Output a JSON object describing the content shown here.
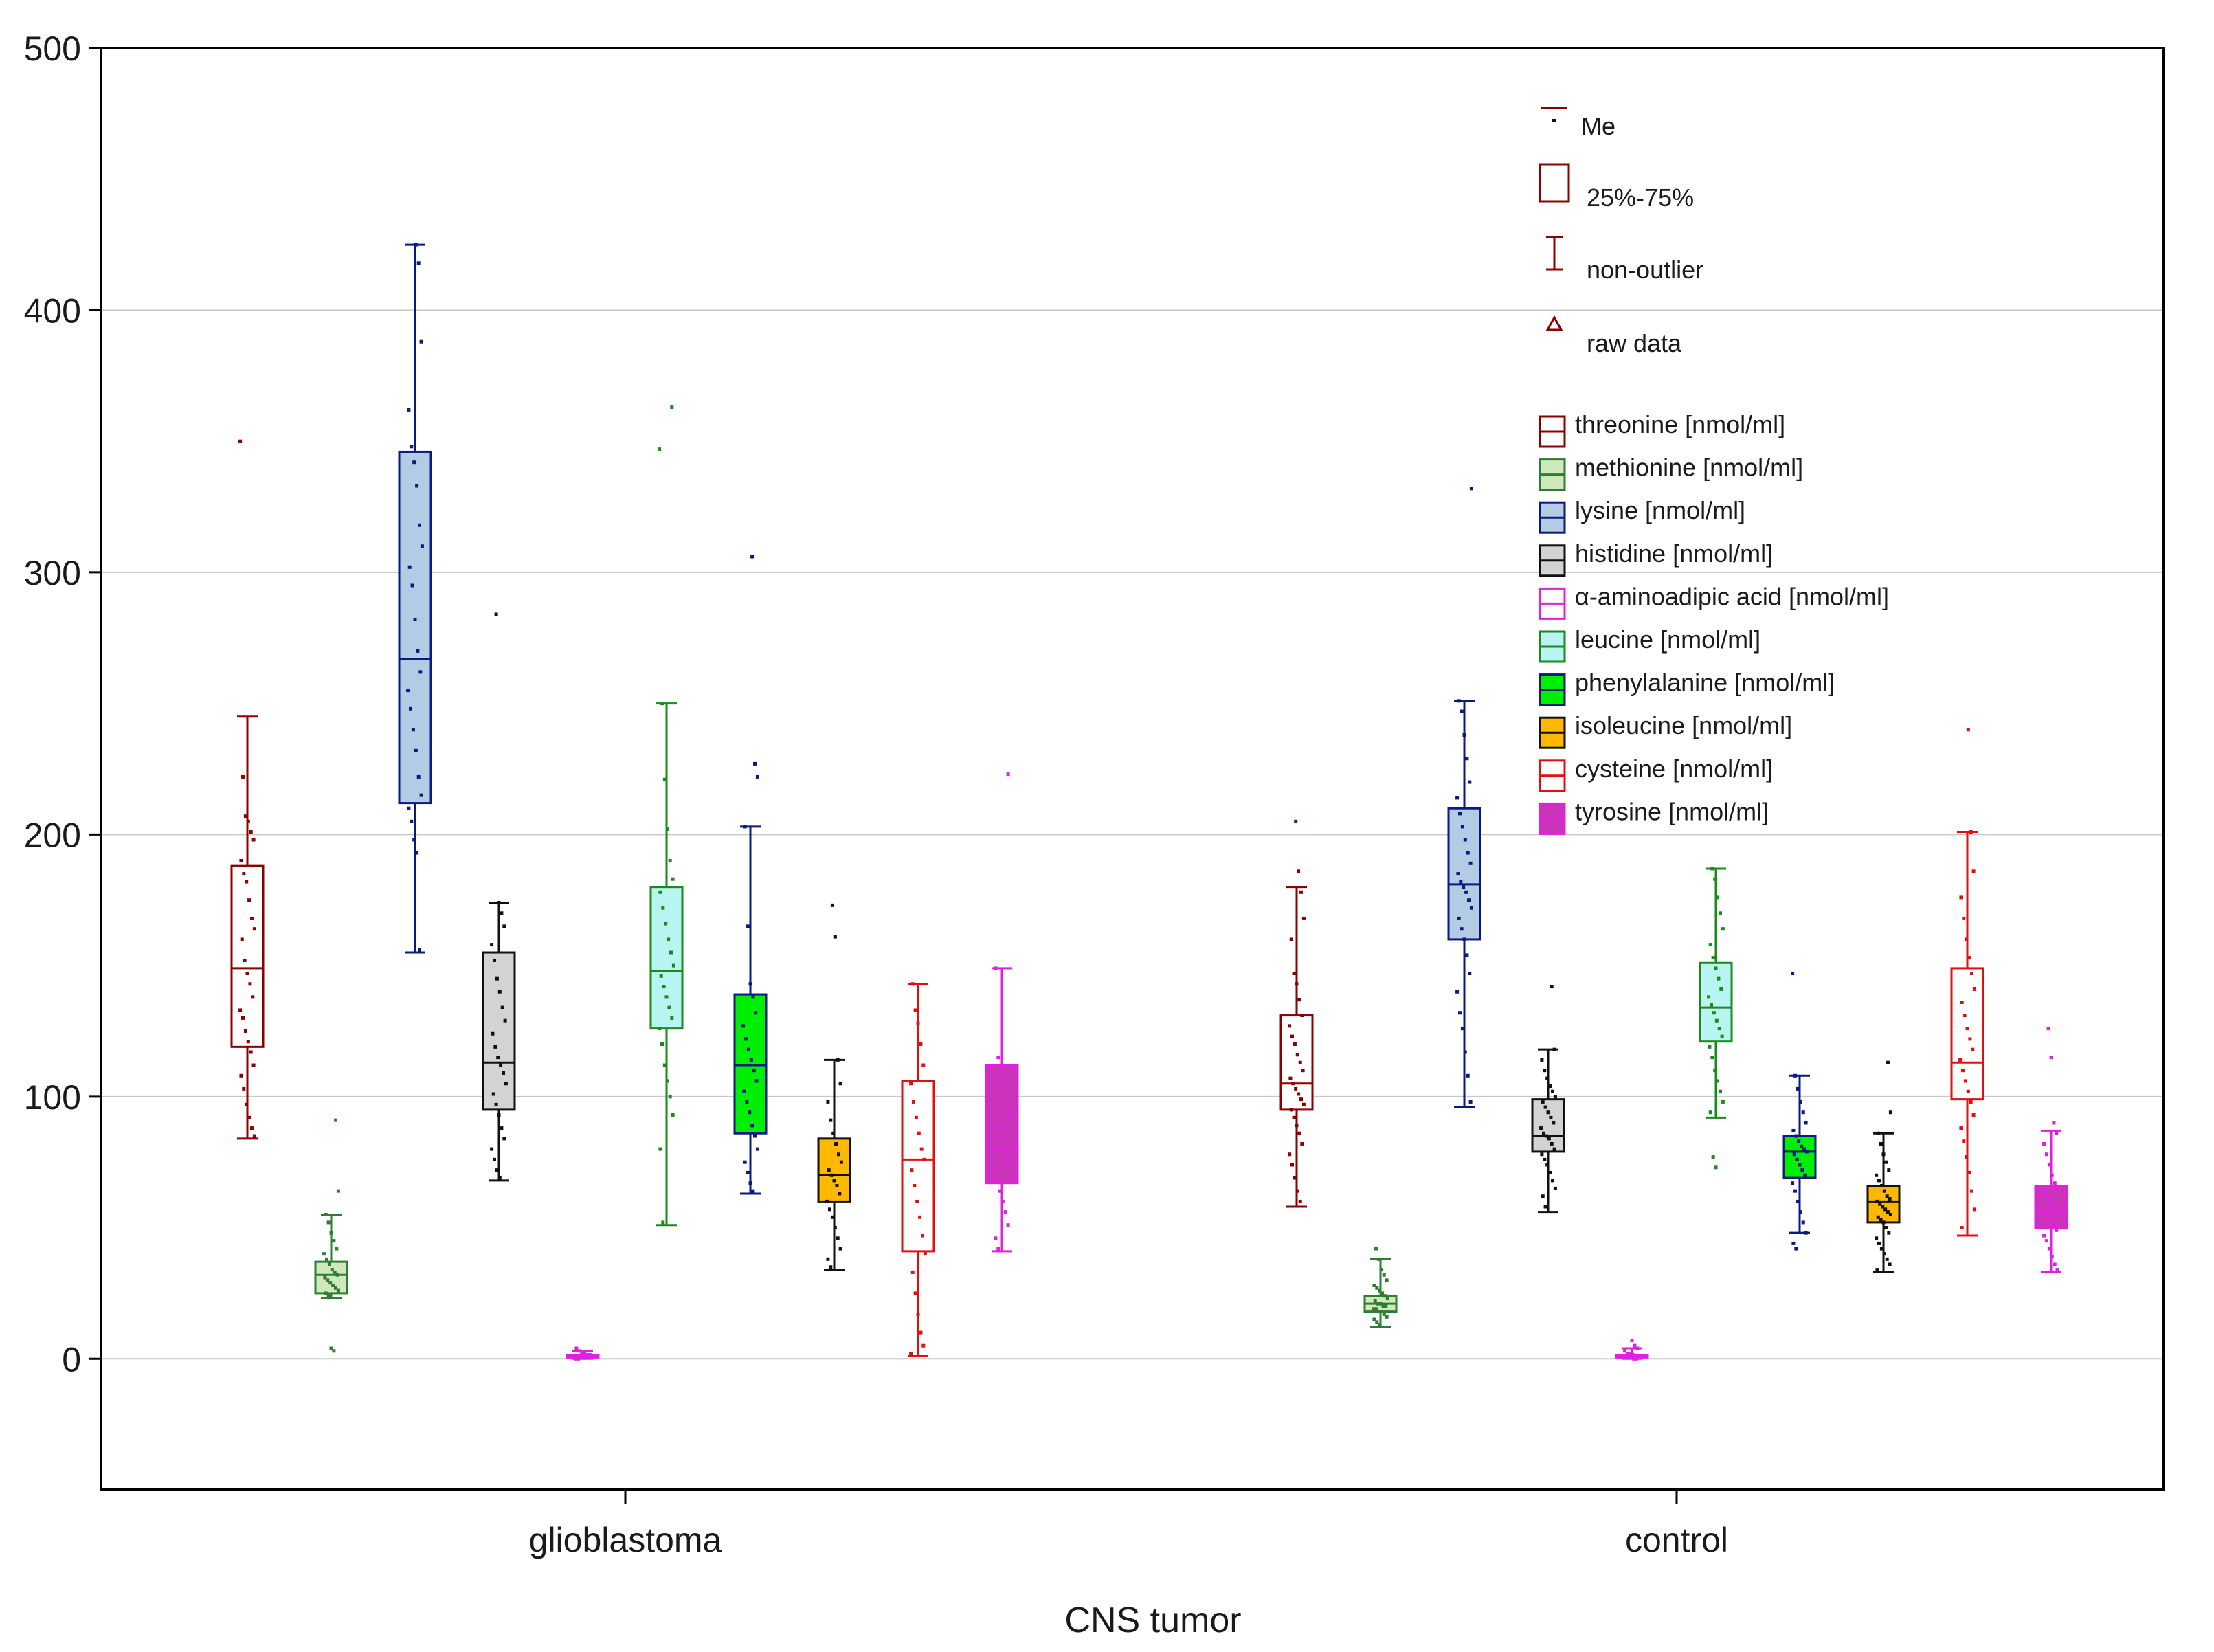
{
  "chart_data": {
    "type": "boxplot",
    "xlabel": "CNS tumor",
    "ylabel": "",
    "ylim": [
      -50,
      500
    ],
    "yticks": [
      0,
      100,
      200,
      300,
      400,
      500
    ],
    "grid": true,
    "categories": [
      "glioblastoma",
      "control"
    ],
    "legend_key": {
      "median": "Me",
      "box": "25%-75%",
      "whisker": "non-outlier",
      "raw": "raw data"
    },
    "series": [
      {
        "name": "threonine  [nmol/ml]",
        "color": "#8b0000",
        "fill": "#ffffff",
        "groups": [
          {
            "category": "glioblastoma",
            "min": 84,
            "q1": 119,
            "median": 149,
            "q3": 188,
            "max": 245,
            "points": [
              350,
              222,
              207,
              205,
              201,
              198,
              190,
              185,
              182,
              175,
              168,
              164,
              160,
              152,
              147,
              143,
              138,
              133,
              130,
              125,
              121,
              117,
              112,
              108,
              103,
              97,
              92,
              88,
              85
            ]
          },
          {
            "category": "control",
            "min": 58,
            "q1": 95,
            "median": 105,
            "q3": 131,
            "max": 180,
            "points": [
              205,
              186,
              178,
              168,
              160,
              147,
              143,
              137,
              131,
              127,
              123,
              120,
              116,
              113,
              110,
              107,
              105,
              103,
              101,
              99,
              97,
              95,
              92,
              89,
              86,
              82,
              78,
              74,
              69,
              64,
              60
            ]
          }
        ]
      },
      {
        "name": "methionine [nmol/ml]",
        "color": "#2e7d32",
        "fill": "#cfe8bd",
        "groups": [
          {
            "category": "glioblastoma",
            "min": 23,
            "q1": 25,
            "median": 32,
            "q3": 37,
            "max": 55,
            "points": [
              91,
              64,
              55,
              52,
              48,
              45,
              42,
              40,
              38,
              36,
              34,
              33,
              32,
              31,
              30,
              29,
              28,
              27,
              26,
              25,
              24,
              4,
              3
            ]
          },
          {
            "category": "control",
            "min": 12,
            "q1": 18,
            "median": 21,
            "q3": 24,
            "max": 38,
            "points": [
              42,
              38,
              34,
              32,
              30,
              28,
              27,
              26,
              25,
              24,
              23,
              22,
              21,
              21,
              20,
              20,
              19,
              19,
              18,
              18,
              17,
              16,
              15,
              14,
              13
            ]
          }
        ]
      },
      {
        "name": "lysine [nmol/ml]",
        "color": "#0a1a80",
        "fill": "#b4cbe4",
        "groups": [
          {
            "category": "glioblastoma",
            "min": 155,
            "q1": 212,
            "median": 267,
            "q3": 346,
            "max": 425,
            "points": [
              425,
              418,
              388,
              362,
              348,
              342,
              333,
              318,
              310,
              302,
              295,
              282,
              270,
              262,
              255,
              248,
              240,
              232,
              222,
              215,
              210,
              205,
              198,
              193,
              156
            ]
          },
          {
            "category": "control",
            "min": 96,
            "q1": 160,
            "median": 181,
            "q3": 210,
            "max": 251,
            "points": [
              332,
              251,
              247,
              238,
              229,
              220,
              214,
              208,
              203,
              198,
              193,
              189,
              185,
              182,
              180,
              178,
              175,
              172,
              168,
              164,
              160,
              154,
              147,
              140,
              132,
              126,
              117,
              108,
              98
            ]
          }
        ]
      },
      {
        "name": "histidine [nmol/ml]",
        "color": "#111111",
        "fill": "#d3d3d3",
        "groups": [
          {
            "category": "glioblastoma",
            "min": 68,
            "q1": 95,
            "median": 113,
            "q3": 155,
            "max": 174,
            "points": [
              284,
              174,
              170,
              165,
              158,
              152,
              145,
              140,
              134,
              129,
              124,
              119,
              115,
              112,
              109,
              105,
              101,
              97,
              93,
              88,
              84,
              80,
              76,
              72,
              69
            ]
          },
          {
            "category": "control",
            "min": 56,
            "q1": 79,
            "median": 85,
            "q3": 99,
            "max": 118,
            "points": [
              142,
              118,
              114,
              110,
              107,
              104,
              102,
              100,
              98,
              96,
              94,
              92,
              90,
              88,
              86,
              85,
              84,
              82,
              80,
              78,
              76,
              74,
              71,
              68,
              65,
              62,
              58
            ]
          }
        ]
      },
      {
        "name": "α-aminoadipic acid [nmol/ml]",
        "color": "#e020e0",
        "fill": "#ffffff",
        "groups": [
          {
            "category": "glioblastoma",
            "min": 0,
            "q1": 0.5,
            "median": 1,
            "q3": 1.5,
            "max": 3,
            "points": [
              4,
              3,
              2,
              2,
              1.5,
              1.5,
              1,
              1,
              1,
              0.5,
              0.5,
              0,
              0
            ]
          },
          {
            "category": "control",
            "min": 0,
            "q1": 0.5,
            "median": 1,
            "q3": 1.5,
            "max": 4,
            "points": [
              7,
              5,
              4,
              3,
              2,
              2,
              1.5,
              1,
              1,
              1,
              0.5,
              0.5,
              0,
              0
            ]
          }
        ]
      },
      {
        "name": "leucine [nmol/ml]",
        "color": "#1a8a1a",
        "fill": "#b8f5f2",
        "groups": [
          {
            "category": "glioblastoma",
            "min": 51,
            "q1": 126,
            "median": 148,
            "q3": 180,
            "max": 250,
            "points": [
              363,
              347,
              250,
              221,
              202,
              190,
              183,
              178,
              172,
              166,
              160,
              155,
              150,
              146,
              142,
              138,
              134,
              130,
              126,
              120,
              112,
              106,
              100,
              93,
              80,
              52
            ]
          },
          {
            "category": "control",
            "min": 92,
            "q1": 121,
            "median": 134,
            "q3": 151,
            "max": 187,
            "points": [
              187,
              183,
              176,
              170,
              164,
              158,
              153,
              149,
              145,
              141,
              138,
              135,
              132,
              129,
              126,
              123,
              119,
              115,
              110,
              106,
              102,
              98,
              94,
              77,
              73
            ]
          }
        ]
      },
      {
        "name": "phenylalanine [nmol/ml]",
        "color": "#0a1a80",
        "fill": "#00ee00",
        "groups": [
          {
            "category": "glioblastoma",
            "min": 63,
            "q1": 86,
            "median": 112,
            "q3": 139,
            "max": 203,
            "points": [
              306,
              227,
              222,
              203,
              165,
              143,
              138,
              132,
              127,
              122,
              118,
              114,
              110,
              106,
              102,
              98,
              94,
              89,
              85,
              80,
              75,
              71,
              67,
              64
            ]
          },
          {
            "category": "control",
            "min": 48,
            "q1": 69,
            "median": 79,
            "q3": 85,
            "max": 108,
            "points": [
              147,
              108,
              103,
              98,
              94,
              90,
              87,
              85,
              83,
              81,
              80,
              79,
              78,
              76,
              74,
              72,
              70,
              67,
              64,
              60,
              56,
              52,
              48,
              44,
              42
            ]
          }
        ]
      },
      {
        "name": "isoleucine [nmol/ml]",
        "color": "#111111",
        "fill": "#ffb800",
        "groups": [
          {
            "category": "glioblastoma",
            "min": 34,
            "q1": 60,
            "median": 70,
            "q3": 84,
            "max": 114,
            "points": [
              173,
              161,
              114,
              105,
              98,
              91,
              86,
              82,
              78,
              75,
              72,
              70,
              68,
              66,
              63,
              60,
              57,
              54,
              50,
              46,
              42,
              38,
              35
            ]
          },
          {
            "category": "control",
            "min": 33,
            "q1": 52,
            "median": 60,
            "q3": 66,
            "max": 86,
            "points": [
              113,
              94,
              86,
              82,
              78,
              75,
              72,
              70,
              68,
              66,
              64,
              62,
              61,
              60,
              59,
              58,
              57,
              56,
              55,
              54,
              53,
              52,
              50,
              48,
              46,
              44,
              42,
              40,
              38,
              36,
              34
            ]
          }
        ]
      },
      {
        "name": "cysteine [nmol/ml]",
        "color": "#e01010",
        "fill": "#ffffff",
        "groups": [
          {
            "category": "glioblastoma",
            "min": 1,
            "q1": 41,
            "median": 76,
            "q3": 106,
            "max": 143,
            "points": [
              143,
              133,
              128,
              120,
              112,
              105,
              98,
              92,
              86,
              80,
              76,
              72,
              66,
              60,
              54,
              47,
              40,
              33,
              25,
              17,
              10,
              5,
              2
            ]
          },
          {
            "category": "control",
            "min": 47,
            "q1": 99,
            "median": 113,
            "q3": 149,
            "max": 201,
            "points": [
              240,
              201,
              186,
              176,
              168,
              160,
              153,
              147,
              141,
              136,
              131,
              126,
              122,
              118,
              114,
              110,
              106,
              102,
              98,
              93,
              88,
              83,
              77,
              71,
              64,
              57,
              50
            ]
          }
        ]
      },
      {
        "name": "tyrosine [nmol/ml]",
        "color": "#e020e0",
        "fill": "#cc33bb",
        "groups": [
          {
            "category": "glioblastoma",
            "min": 41,
            "q1": 67,
            "median": 80,
            "q3": 112,
            "max": 149,
            "points": [
              223,
              149,
              115,
              110,
              104,
              98,
              93,
              88,
              84,
              80,
              77,
              74,
              71,
              68,
              64,
              60,
              56,
              51,
              46,
              42
            ]
          },
          {
            "category": "control",
            "min": 33,
            "q1": 50,
            "median": 56,
            "q3": 66,
            "max": 87,
            "points": [
              126,
              115,
              90,
              86,
              82,
              78,
              74,
              70,
              67,
              65,
              63,
              61,
              59,
              58,
              57,
              56,
              55,
              54,
              53,
              51,
              49,
              47,
              45,
              42,
              39,
              36,
              34
            ]
          }
        ]
      }
    ]
  }
}
